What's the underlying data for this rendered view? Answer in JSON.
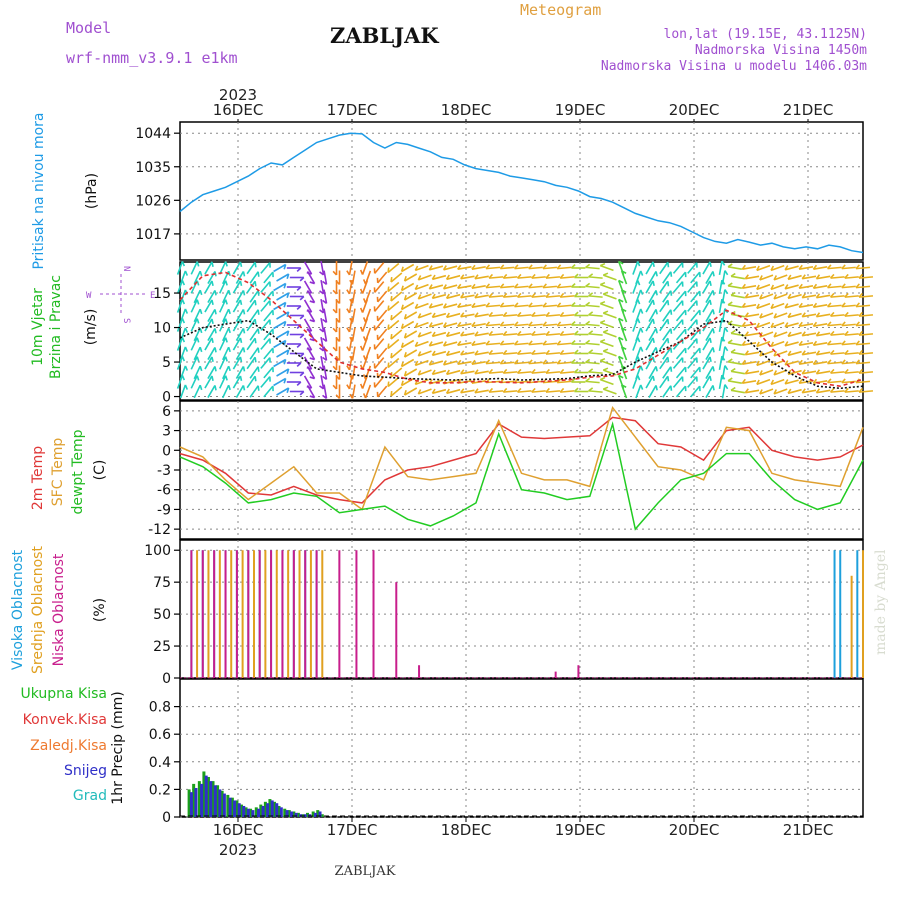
{
  "header": {
    "model_label": "Model",
    "model_name": "wrf-nmm_v3.9.1 e1km",
    "station": "ZABLJAK",
    "meteogram_label": "Meteogram",
    "lonlat": "lon,lat (19.15E, 43.1125N)",
    "altitude": "Nadmorska Visina 1450m",
    "model_altitude": "Nadmorska Visina u modelu 1406.03m",
    "credit": "made by Angel",
    "footer_station": "ZABLJAK"
  },
  "colors": {
    "pressure": "#1e9be6",
    "speed": "#111111",
    "gust": "#e03030",
    "t2m": "#e03838",
    "sfc": "#dfa030",
    "dewpt": "#22cc22",
    "cloud_high": "#1ea0dc",
    "cloud_mid": "#e0a020",
    "cloud_low": "#c81e8c",
    "precip_total": "#1aa01a",
    "precip_snow": "#3030c8",
    "label_purple": "#a050d0",
    "label_orange": "#e0a040",
    "grid": "#888888"
  },
  "chart_data": [
    {
      "type": "line",
      "id": "pressure",
      "label_lines": [
        "Pritisak na nivou mora"
      ],
      "unit": "(hPa)",
      "year": "2023",
      "x_ticks": [
        "16DEC",
        "17DEC",
        "18DEC",
        "19DEC",
        "20DEC",
        "21DEC"
      ],
      "ylim": [
        1010,
        1047
      ],
      "y_ticks": [
        1017,
        1026,
        1035,
        1044
      ],
      "grid": true,
      "series": [
        {
          "color_key": "pressure",
          "x": [
            0.0,
            0.1,
            0.2,
            0.3,
            0.4,
            0.5,
            0.6,
            0.7,
            0.8,
            0.9,
            1.0,
            1.1,
            1.2,
            1.3,
            1.4,
            1.5,
            1.6,
            1.7,
            1.8,
            1.9,
            2.0,
            2.1,
            2.2,
            2.3,
            2.4,
            2.5,
            2.6,
            2.7,
            2.8,
            2.9,
            3.0,
            3.1,
            3.2,
            3.3,
            3.4,
            3.5,
            3.6,
            3.7,
            3.8,
            3.9,
            4.0,
            4.1,
            4.2,
            4.3,
            4.4,
            4.5,
            4.6,
            4.7,
            4.8,
            4.9,
            5.0,
            5.1,
            5.2,
            5.3,
            5.4,
            5.5,
            5.6,
            5.7,
            5.8,
            5.9,
            6.0
          ],
          "y": [
            1023.0,
            1025.5,
            1027.5,
            1028.5,
            1029.5,
            1031.0,
            1032.5,
            1034.5,
            1036.0,
            1035.5,
            1037.5,
            1039.5,
            1041.5,
            1042.5,
            1043.5,
            1044.0,
            1043.8,
            1041.5,
            1040.0,
            1041.5,
            1041.0,
            1040.0,
            1039.0,
            1037.5,
            1037.0,
            1035.5,
            1034.5,
            1034.0,
            1033.5,
            1032.5,
            1032.0,
            1031.5,
            1031.0,
            1030.0,
            1029.5,
            1028.5,
            1027.0,
            1026.5,
            1025.5,
            1024.0,
            1022.5,
            1021.5,
            1020.5,
            1020.0,
            1019.0,
            1017.5,
            1016.0,
            1015.0,
            1014.5,
            1015.5,
            1014.8,
            1014.0,
            1014.5,
            1013.5,
            1013.0,
            1013.5,
            1013.0,
            1014.0,
            1013.5,
            1012.5,
            1012.0
          ]
        }
      ]
    },
    {
      "type": "line",
      "id": "wind",
      "label_lines": [
        "10m Vjetar",
        "Brzina i Pravac"
      ],
      "unit": "(m/s)",
      "compass": [
        "W",
        "E",
        "N",
        "S"
      ],
      "ylim": [
        -0.5,
        19.5
      ],
      "y_ticks": [
        0,
        5,
        10,
        15
      ],
      "grid": true,
      "series": [
        {
          "name": "speed",
          "color_key": "speed",
          "x": [
            0.0,
            0.2,
            0.4,
            0.6,
            0.8,
            1.0,
            1.2,
            1.4,
            1.6,
            1.8,
            2.0,
            2.2,
            2.4,
            2.6,
            2.8,
            3.0,
            3.2,
            3.4,
            3.6,
            3.8,
            4.0,
            4.2,
            4.4,
            4.6,
            4.8,
            5.0,
            5.2,
            5.4,
            5.6,
            5.8,
            6.0
          ],
          "y": [
            8.5,
            10.0,
            10.5,
            11.0,
            9.0,
            6.5,
            4.0,
            3.5,
            3.0,
            2.8,
            2.6,
            2.5,
            2.4,
            2.5,
            2.6,
            2.4,
            2.5,
            2.6,
            3.0,
            3.2,
            5.0,
            6.5,
            8.0,
            10.5,
            11.0,
            8.0,
            5.0,
            3.0,
            1.5,
            1.2,
            1.5
          ]
        },
        {
          "name": "gust",
          "color_key": "gust",
          "x": [
            0.0,
            0.2,
            0.4,
            0.6,
            0.8,
            1.0,
            1.2,
            1.4,
            1.6,
            1.8,
            2.0,
            2.2,
            2.4,
            2.6,
            2.8,
            3.0,
            3.2,
            3.4,
            3.6,
            3.8,
            4.0,
            4.2,
            4.4,
            4.6,
            4.8,
            5.0,
            5.2,
            5.4,
            5.6,
            5.8,
            6.0
          ],
          "y": [
            14.0,
            17.5,
            18.0,
            16.5,
            14.0,
            11.0,
            8.0,
            5.0,
            4.0,
            3.5,
            2.5,
            2.0,
            2.0,
            2.2,
            2.1,
            2.0,
            2.2,
            2.4,
            2.8,
            3.0,
            4.0,
            6.0,
            8.0,
            10.0,
            12.5,
            11.0,
            7.0,
            3.5,
            2.0,
            1.5,
            2.5
          ]
        }
      ],
      "barbs": {
        "x": [
          0.0,
          0.125,
          0.25,
          0.375,
          0.5,
          0.625,
          0.75,
          0.875,
          1.0,
          1.125,
          1.25,
          1.375,
          1.5,
          1.625,
          1.75,
          1.875,
          2.0,
          2.125,
          2.25,
          2.375,
          2.5,
          2.625,
          2.75,
          2.875,
          3.0,
          3.125,
          3.25,
          3.375,
          3.5,
          3.625,
          3.75,
          3.875,
          4.0,
          4.125,
          4.25,
          4.375,
          4.5,
          4.625,
          4.75,
          4.875,
          5.0,
          5.125,
          5.25,
          5.375,
          5.5,
          5.625,
          5.75,
          5.875,
          6.0
        ],
        "dir": [
          200,
          205,
          210,
          205,
          210,
          215,
          220,
          240,
          270,
          330,
          350,
          0,
          10,
          20,
          40,
          50,
          60,
          70,
          75,
          75,
          80,
          80,
          85,
          85,
          85,
          85,
          85,
          85,
          90,
          95,
          110,
          160,
          200,
          210,
          215,
          220,
          220,
          210,
          190,
          100,
          80,
          70,
          70,
          75,
          80,
          80,
          85,
          85,
          85
        ]
      }
    },
    {
      "type": "line",
      "id": "temperature",
      "label_lines": [
        "2m Temp",
        "SFC Temp",
        "dewpt Temp"
      ],
      "unit": "(C)",
      "ylim": [
        -13.5,
        7.5
      ],
      "y_ticks": [
        -12,
        -9,
        -6,
        -3,
        0,
        3,
        6
      ],
      "grid": true,
      "series": [
        {
          "name": "2m Temp",
          "color_key": "t2m",
          "x": [
            0.0,
            0.2,
            0.4,
            0.6,
            0.8,
            1.0,
            1.2,
            1.4,
            1.6,
            1.8,
            2.0,
            2.2,
            2.4,
            2.6,
            2.8,
            3.0,
            3.2,
            3.4,
            3.6,
            3.8,
            4.0,
            4.2,
            4.4,
            4.6,
            4.8,
            5.0,
            5.2,
            5.4,
            5.6,
            5.8,
            6.0
          ],
          "y": [
            -0.5,
            -1.5,
            -3.5,
            -6.5,
            -6.8,
            -5.5,
            -6.8,
            -7.5,
            -8.0,
            -4.5,
            -3.0,
            -2.5,
            -1.5,
            -0.5,
            4.0,
            2.0,
            1.8,
            2.0,
            2.2,
            5.0,
            4.5,
            1.0,
            0.5,
            -1.5,
            3.0,
            3.5,
            0.0,
            -1.0,
            -1.5,
            -1.0,
            0.8
          ]
        },
        {
          "name": "SFC Temp",
          "color_key": "sfc",
          "x": [
            0.0,
            0.2,
            0.4,
            0.6,
            0.8,
            1.0,
            1.2,
            1.4,
            1.6,
            1.8,
            2.0,
            2.2,
            2.4,
            2.6,
            2.8,
            3.0,
            3.2,
            3.4,
            3.6,
            3.8,
            4.0,
            4.2,
            4.4,
            4.6,
            4.8,
            5.0,
            5.2,
            5.4,
            5.6,
            5.8,
            6.0
          ],
          "y": [
            0.5,
            -1.0,
            -4.5,
            -7.5,
            -5.0,
            -2.5,
            -6.5,
            -6.5,
            -9.0,
            0.5,
            -4.0,
            -4.5,
            -4.0,
            -3.5,
            4.5,
            -3.5,
            -4.5,
            -4.5,
            -5.5,
            6.5,
            2.0,
            -2.5,
            -3.0,
            -4.5,
            3.5,
            3.0,
            -3.5,
            -4.5,
            -5.0,
            -5.5,
            3.5
          ]
        },
        {
          "name": "dewpt Temp",
          "color_key": "dewpt",
          "x": [
            0.0,
            0.2,
            0.4,
            0.6,
            0.8,
            1.0,
            1.2,
            1.4,
            1.6,
            1.8,
            2.0,
            2.2,
            2.4,
            2.6,
            2.8,
            3.0,
            3.2,
            3.4,
            3.6,
            3.8,
            4.0,
            4.2,
            4.4,
            4.6,
            4.8,
            5.0,
            5.2,
            5.4,
            5.6,
            5.8,
            6.0
          ],
          "y": [
            -1.0,
            -2.5,
            -5.0,
            -8.0,
            -7.5,
            -6.5,
            -7.0,
            -9.5,
            -9.0,
            -8.5,
            -10.5,
            -11.5,
            -10.0,
            -8.0,
            2.5,
            -6.0,
            -6.5,
            -7.5,
            -7.0,
            4.0,
            -12.0,
            -8.0,
            -4.5,
            -3.5,
            -0.5,
            -0.5,
            -4.5,
            -7.5,
            -9.0,
            -8.0,
            -1.5
          ]
        }
      ]
    },
    {
      "type": "bar",
      "id": "cloud",
      "label_lines": [
        "Visoka Oblacnost",
        "Srednja Oblacnost",
        "Niska Oblacnost"
      ],
      "unit": "(%)",
      "ylim": [
        0,
        108
      ],
      "y_ticks": [
        0,
        25,
        50,
        75,
        100
      ],
      "grid": true,
      "series": [
        {
          "name": "Visoka Oblacnost",
          "color_key": "cloud_high",
          "x": [
            0.1,
            0.2,
            0.3,
            0.4,
            0.5,
            0.6,
            0.7,
            0.8,
            0.9,
            1.0,
            1.1,
            1.2,
            5.75,
            5.8,
            5.95
          ],
          "y": [
            100,
            100,
            100,
            100,
            100,
            100,
            100,
            100,
            100,
            100,
            100,
            100,
            100,
            100,
            100
          ]
        },
        {
          "name": "Srednja Oblacnost",
          "color_key": "cloud_mid",
          "x": [
            0.15,
            0.25,
            0.35,
            0.45,
            0.55,
            0.65,
            0.75,
            0.85,
            0.95,
            1.05,
            1.15,
            1.25,
            5.9,
            6.0
          ],
          "y": [
            100,
            100,
            100,
            100,
            100,
            100,
            100,
            100,
            100,
            100,
            100,
            100,
            80,
            100
          ]
        },
        {
          "name": "Niska Oblacnost",
          "color_key": "cloud_low",
          "x": [
            0.1,
            0.2,
            0.3,
            0.4,
            0.5,
            0.6,
            0.7,
            0.8,
            0.9,
            1.0,
            1.1,
            1.2,
            1.4,
            1.55,
            1.7,
            1.9,
            2.1,
            2.3,
            3.3,
            3.5,
            5.85
          ],
          "y": [
            100,
            100,
            100,
            100,
            100,
            100,
            100,
            100,
            100,
            100,
            100,
            100,
            100,
            100,
            100,
            75,
            10,
            0,
            5,
            10,
            0
          ]
        }
      ]
    },
    {
      "type": "bar",
      "id": "precip",
      "label_lines": [
        "Ukupna Kisa",
        "Konvek.Kisa",
        "Zaledj.Kisa",
        "Snijeg",
        "Grad"
      ],
      "unit": "1hr Precip (mm)",
      "year": "2023",
      "x_ticks": [
        "16DEC",
        "17DEC",
        "18DEC",
        "19DEC",
        "20DEC",
        "21DEC"
      ],
      "ylim": [
        0,
        1.0
      ],
      "y_ticks": [
        0,
        0.2,
        0.4,
        0.6,
        0.8
      ],
      "grid": true,
      "series": [
        {
          "name": "Ukupna Kisa",
          "color_key": "precip_total",
          "x": [
            0.08,
            0.12,
            0.17,
            0.21,
            0.25,
            0.29,
            0.33,
            0.37,
            0.42,
            0.46,
            0.5,
            0.54,
            0.58,
            0.62,
            0.67,
            0.71,
            0.75,
            0.79,
            0.83,
            0.87,
            0.92,
            0.96,
            1.0,
            1.04,
            1.08,
            1.12,
            1.17,
            1.21,
            1.25
          ],
          "y": [
            0.2,
            0.24,
            0.26,
            0.33,
            0.29,
            0.26,
            0.23,
            0.19,
            0.16,
            0.14,
            0.12,
            0.09,
            0.07,
            0.06,
            0.07,
            0.09,
            0.11,
            0.13,
            0.11,
            0.08,
            0.06,
            0.05,
            0.04,
            0.03,
            0.02,
            0.03,
            0.04,
            0.05,
            0.02
          ]
        },
        {
          "name": "Snijeg",
          "color_key": "precip_snow",
          "x": [
            0.1,
            0.14,
            0.19,
            0.23,
            0.27,
            0.31,
            0.35,
            0.39,
            0.44,
            0.48,
            0.52,
            0.56,
            0.6,
            0.64,
            0.69,
            0.73,
            0.77,
            0.81,
            0.85,
            0.89,
            0.94,
            0.98,
            1.02,
            1.06,
            1.1,
            1.14,
            1.19,
            1.23
          ],
          "y": [
            0.18,
            0.21,
            0.24,
            0.3,
            0.26,
            0.23,
            0.2,
            0.17,
            0.14,
            0.12,
            0.1,
            0.08,
            0.06,
            0.05,
            0.06,
            0.08,
            0.1,
            0.12,
            0.1,
            0.07,
            0.05,
            0.04,
            0.03,
            0.02,
            0.02,
            0.02,
            0.03,
            0.04
          ]
        }
      ]
    }
  ]
}
